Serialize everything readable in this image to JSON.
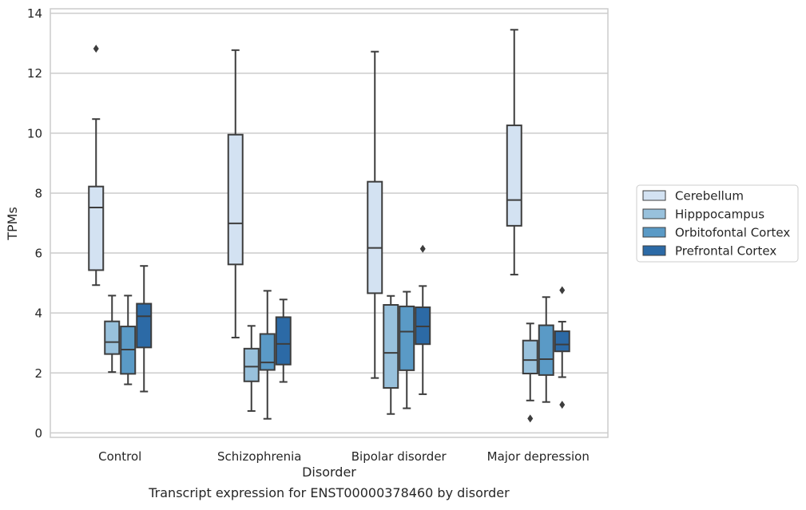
{
  "chart_data": {
    "type": "boxplot",
    "xlabel": "Disorder",
    "ylabel": "TPMs",
    "caption": "Transcript expression for ENST00000378460 by disorder",
    "ylim": [
      -0.15,
      14.15
    ],
    "yticks": [
      0,
      2,
      4,
      6,
      8,
      10,
      12,
      14
    ],
    "grid": "horizontal",
    "legend_position": "right",
    "categories": [
      "Control",
      "Schizophrenia",
      "Bipolar disorder",
      "Major depression"
    ],
    "series": [
      {
        "name": "Cerebellum",
        "color": "#d3e2f2",
        "boxes": [
          {
            "whisker_low": 4.93,
            "q1": 5.43,
            "median": 7.52,
            "q3": 8.22,
            "whisker_high": 10.47,
            "outliers": [
              12.82
            ]
          },
          {
            "whisker_low": 3.18,
            "q1": 5.62,
            "median": 6.99,
            "q3": 9.95,
            "whisker_high": 12.77,
            "outliers": []
          },
          {
            "whisker_low": 1.83,
            "q1": 4.66,
            "median": 6.17,
            "q3": 8.38,
            "whisker_high": 12.72,
            "outliers": []
          },
          {
            "whisker_low": 5.28,
            "q1": 6.91,
            "median": 7.77,
            "q3": 10.26,
            "whisker_high": 13.45,
            "outliers": []
          }
        ]
      },
      {
        "name": "Hipppocampus",
        "color": "#98c1dc",
        "boxes": [
          {
            "whisker_low": 2.03,
            "q1": 2.63,
            "median": 3.03,
            "q3": 3.72,
            "whisker_high": 4.58,
            "outliers": []
          },
          {
            "whisker_low": 0.73,
            "q1": 1.72,
            "median": 2.21,
            "q3": 2.81,
            "whisker_high": 3.57,
            "outliers": []
          },
          {
            "whisker_low": 0.63,
            "q1": 1.5,
            "median": 2.67,
            "q3": 4.27,
            "whisker_high": 4.57,
            "outliers": []
          },
          {
            "whisker_low": 1.08,
            "q1": 1.98,
            "median": 2.43,
            "q3": 3.08,
            "whisker_high": 3.65,
            "outliers": [
              0.48
            ]
          }
        ]
      },
      {
        "name": "Orbitofontal Cortex",
        "color": "#5a9ac6",
        "boxes": [
          {
            "whisker_low": 1.62,
            "q1": 1.97,
            "median": 2.78,
            "q3": 3.55,
            "whisker_high": 4.58,
            "outliers": []
          },
          {
            "whisker_low": 0.47,
            "q1": 2.1,
            "median": 2.35,
            "q3": 3.3,
            "whisker_high": 4.74,
            "outliers": []
          },
          {
            "whisker_low": 0.82,
            "q1": 2.09,
            "median": 3.38,
            "q3": 4.22,
            "whisker_high": 4.71,
            "outliers": []
          },
          {
            "whisker_low": 1.03,
            "q1": 1.93,
            "median": 2.46,
            "q3": 3.59,
            "whisker_high": 4.53,
            "outliers": []
          }
        ]
      },
      {
        "name": "Prefrontal Cortex",
        "color": "#2c6aa6",
        "boxes": [
          {
            "whisker_low": 1.38,
            "q1": 2.85,
            "median": 3.89,
            "q3": 4.31,
            "whisker_high": 5.57,
            "outliers": []
          },
          {
            "whisker_low": 1.7,
            "q1": 2.28,
            "median": 2.97,
            "q3": 3.86,
            "whisker_high": 4.45,
            "outliers": []
          },
          {
            "whisker_low": 1.29,
            "q1": 2.96,
            "median": 3.55,
            "q3": 4.19,
            "whisker_high": 4.9,
            "outliers": [
              6.14
            ]
          },
          {
            "whisker_low": 1.86,
            "q1": 2.72,
            "median": 2.95,
            "q3": 3.39,
            "whisker_high": 3.71,
            "outliers": [
              4.76,
              0.94
            ]
          }
        ]
      }
    ]
  }
}
